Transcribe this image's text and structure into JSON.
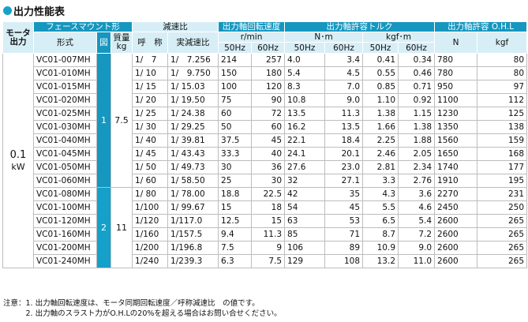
{
  "title": "出力性能表",
  "headers": {
    "motor_output": [
      "モータ",
      "出力"
    ],
    "face_mount": "フェースマウント形",
    "model": "形式",
    "fig": "図",
    "mass": [
      "質量",
      "kg"
    ],
    "reduction": "減速比",
    "nominal": "呼　称",
    "actual": "実減速比",
    "speed": "出力軸回転速度",
    "speed_unit": "r/min",
    "torque": "出力軸許容トルク",
    "torque_nm": "N･m",
    "torque_kgf": "kgf･m",
    "ohl": "出力軸許容 O.H.L",
    "ohl_n": "N",
    "ohl_kgf": "kgf",
    "hz50": "50Hz",
    "hz60": "60Hz"
  },
  "motor": {
    "value": "0.1",
    "unit": "kW"
  },
  "groups": [
    {
      "fig": "1",
      "mass": "7.5",
      "start": 0,
      "count": 10
    },
    {
      "fig": "2",
      "mass": "11",
      "start": 10,
      "count": 6
    }
  ],
  "rows": [
    {
      "model": "VC01-007MH",
      "nominal": "1/　7",
      "actual": "1/　7.256",
      "s50": "214",
      "s60": "257",
      "t50n": "4.0",
      "t60n": "3.4",
      "t50k": "0.41",
      "t60k": "0.34",
      "ohl_n": "780",
      "ohl_k": "80"
    },
    {
      "model": "VC01-010MH",
      "nominal": "1/ 10",
      "actual": "1/　9.750",
      "s50": "150",
      "s60": "180",
      "t50n": "5.4",
      "t60n": "4.5",
      "t50k": "0.55",
      "t60k": "0.46",
      "ohl_n": "780",
      "ohl_k": "80"
    },
    {
      "model": "VC01-015MH",
      "nominal": "1/ 15",
      "actual": "1/ 15.03",
      "s50": "100",
      "s60": "120",
      "t50n": "8.3",
      "t60n": "7.0",
      "t50k": "0.85",
      "t60k": "0.71",
      "ohl_n": "950",
      "ohl_k": "97"
    },
    {
      "model": "VC01-020MH",
      "nominal": "1/ 20",
      "actual": "1/ 19.50",
      "s50": "75",
      "s60": "90",
      "t50n": "10.8",
      "t60n": "9.0",
      "t50k": "1.10",
      "t60k": "0.92",
      "ohl_n": "1100",
      "ohl_k": "112"
    },
    {
      "model": "VC01-025MH",
      "nominal": "1/ 25",
      "actual": "1/ 24.38",
      "s50": "60",
      "s60": "72",
      "t50n": "13.5",
      "t60n": "11.3",
      "t50k": "1.38",
      "t60k": "1.15",
      "ohl_n": "1230",
      "ohl_k": "125"
    },
    {
      "model": "VC01-030MH",
      "nominal": "1/ 30",
      "actual": "1/ 29.25",
      "s50": "50",
      "s60": "60",
      "t50n": "16.2",
      "t60n": "13.5",
      "t50k": "1.66",
      "t60k": "1.38",
      "ohl_n": "1350",
      "ohl_k": "138"
    },
    {
      "model": "VC01-040MH",
      "nominal": "1/ 40",
      "actual": "1/ 39.81",
      "s50": "37.5",
      "s60": "45",
      "t50n": "22.1",
      "t60n": "18.4",
      "t50k": "2.25",
      "t60k": "1.88",
      "ohl_n": "1560",
      "ohl_k": "159"
    },
    {
      "model": "VC01-045MH",
      "nominal": "1/ 45",
      "actual": "1/ 43.43",
      "s50": "33.3",
      "s60": "40",
      "t50n": "24.1",
      "t60n": "20.1",
      "t50k": "2.46",
      "t60k": "2.05",
      "ohl_n": "1650",
      "ohl_k": "168"
    },
    {
      "model": "VC01-050MH",
      "nominal": "1/ 50",
      "actual": "1/ 49.73",
      "s50": "30",
      "s60": "36",
      "t50n": "27.6",
      "t60n": "23.0",
      "t50k": "2.81",
      "t60k": "2.34",
      "ohl_n": "1740",
      "ohl_k": "177"
    },
    {
      "model": "VC01-060MH",
      "nominal": "1/ 60",
      "actual": "1/ 58.50",
      "s50": "25",
      "s60": "30",
      "t50n": "32",
      "t60n": "27.1",
      "t50k": "3.3",
      "t60k": "2.76",
      "ohl_n": "1910",
      "ohl_k": "195"
    },
    {
      "model": "VC01-080MH",
      "nominal": "1/ 80",
      "actual": "1/ 78.00",
      "s50": "18.8",
      "s60": "22.5",
      "t50n": "42",
      "t60n": "35",
      "t50k": "4.3",
      "t60k": "3.6",
      "ohl_n": "2270",
      "ohl_k": "231"
    },
    {
      "model": "VC01-100MH",
      "nominal": "1/100",
      "actual": "1/ 99.67",
      "s50": "15",
      "s60": "18",
      "t50n": "54",
      "t60n": "45",
      "t50k": "5.5",
      "t60k": "4.6",
      "ohl_n": "2450",
      "ohl_k": "250"
    },
    {
      "model": "VC01-120MH",
      "nominal": "1/120",
      "actual": "1/117.0",
      "s50": "12.5",
      "s60": "15",
      "t50n": "63",
      "t60n": "53",
      "t50k": "6.5",
      "t60k": "5.4",
      "ohl_n": "2600",
      "ohl_k": "265"
    },
    {
      "model": "VC01-160MH",
      "nominal": "1/160",
      "actual": "1/157.5",
      "s50": "9.4",
      "s60": "11.3",
      "t50n": "85",
      "t60n": "71",
      "t50k": "8.7",
      "t60k": "7.2",
      "ohl_n": "2600",
      "ohl_k": "265"
    },
    {
      "model": "VC01-200MH",
      "nominal": "1/200",
      "actual": "1/196.8",
      "s50": "7.5",
      "s60": "9",
      "t50n": "106",
      "t60n": "89",
      "t50k": "10.9",
      "t60k": "9.0",
      "ohl_n": "2600",
      "ohl_k": "265"
    },
    {
      "model": "VC01-240MH",
      "nominal": "1/240",
      "actual": "1/239.3",
      "s50": "6.3",
      "s60": "7.5",
      "t50n": "129",
      "t60n": "108",
      "t50k": "13.2",
      "t60k": "11.0",
      "ohl_n": "2600",
      "ohl_k": "265"
    }
  ],
  "notes": [
    "注意：1. 出力軸回転速度は、モータ同期回転速度／呼称減速比　の値です。",
    "　　　2. 出力軸のスラスト力がO.H.Lの20%を超える場合はお問い合せください。"
  ]
}
